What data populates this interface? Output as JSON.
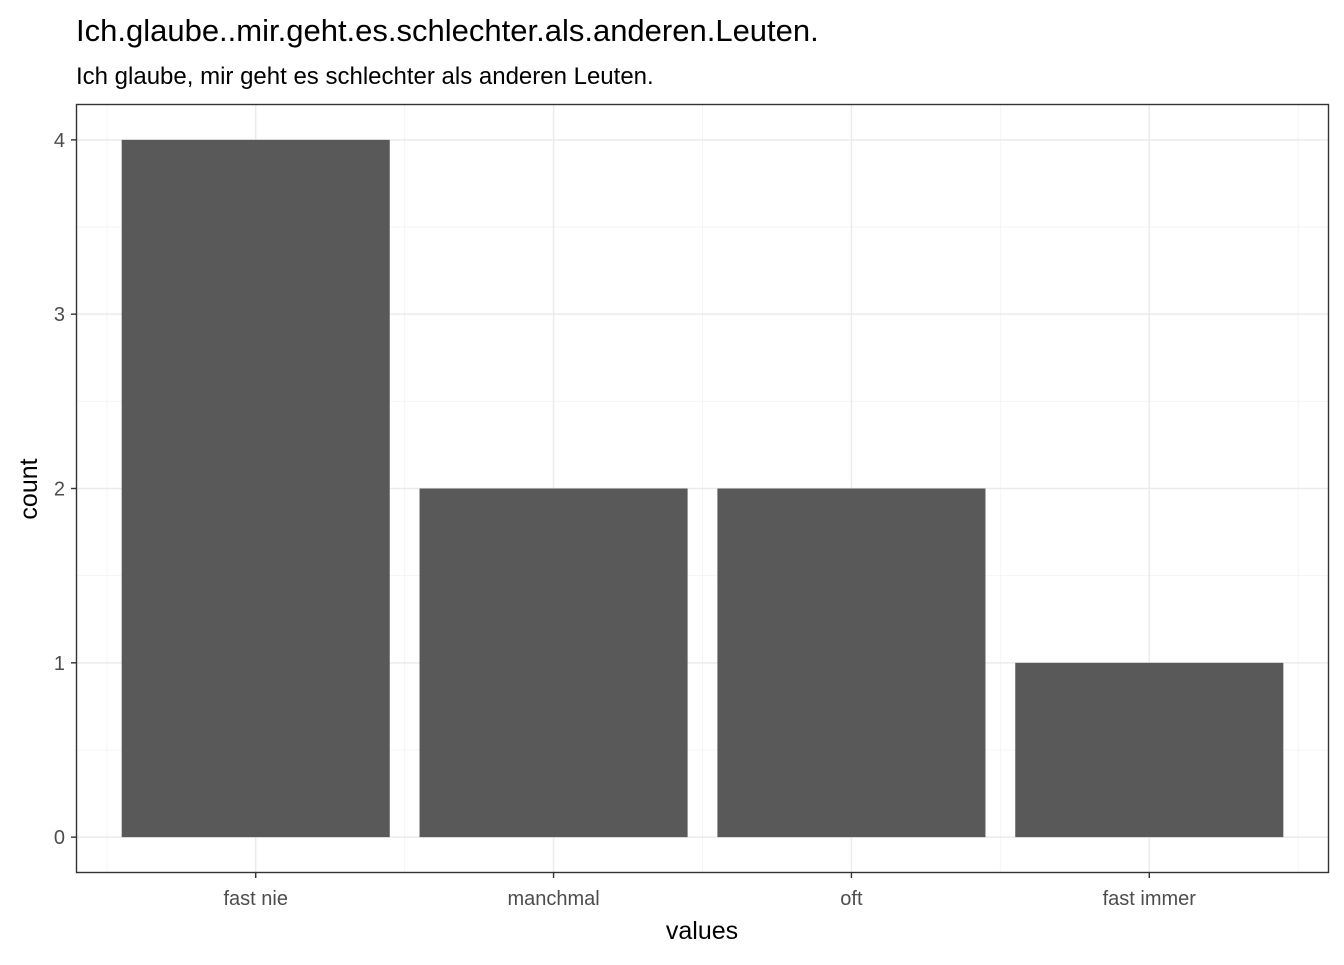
{
  "chart_data": {
    "type": "bar",
    "title": "Ich.glaube..mir.geht.es.schlechter.als.anderen.Leuten.",
    "subtitle": "Ich glaube, mir geht es schlechter als anderen Leuten.",
    "xlabel": "values",
    "ylabel": "count",
    "categories": [
      "fast nie",
      "manchmal",
      "oft",
      "fast immer"
    ],
    "values": [
      4,
      2,
      2,
      1
    ],
    "ylim": [
      -0.2,
      4.2
    ],
    "yticks": [
      0,
      1,
      2,
      3,
      4
    ],
    "grid": true,
    "legend": "none",
    "colors": {
      "bar": "#595959",
      "panel_border": "#333333",
      "grid_major": "#ebebeb",
      "grid_minor": "#f5f5f5",
      "tick_label": "#4d4d4d",
      "text": "#000000"
    }
  }
}
